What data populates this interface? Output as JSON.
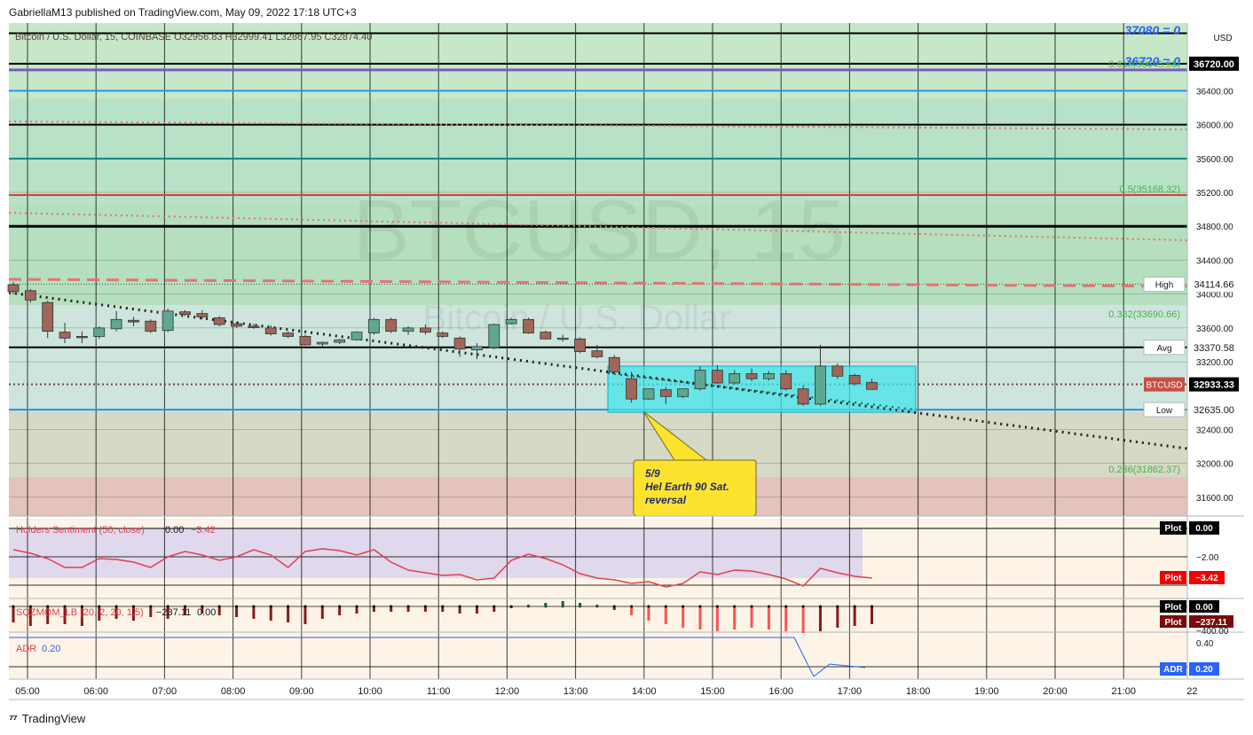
{
  "header": {
    "publisher": "GabriellaM13 published on TradingView.com, May 09, 2022 17:18 UTC+3"
  },
  "footer": {
    "brand": "TradingView",
    "logo_icon": "tradingview-logo-icon"
  },
  "main_chart": {
    "legend": "Bitcoin / U.S. Dollar, 15, COINBASE  O32956.83  H32999.41  L32867.95  C32874.40",
    "watermark_symbol": "BTCUSD, 15",
    "watermark_name": "Bitcoin / U.S. Dollar",
    "currency": "USD",
    "price_scale": [
      "36400.00",
      "36000.00",
      "35600.00",
      "35200.00",
      "34800.00",
      "34400.00",
      "34000.00",
      "33600.00",
      "33200.00",
      "32400.00",
      "32000.00",
      "31600.00"
    ],
    "fib_levels": [
      {
        "label": "0.618(36645.98)",
        "price": 36645.98
      },
      {
        "label": "0.5(35168.32)",
        "price": 35168.32
      },
      {
        "label": "0.382(33690.66)",
        "price": 33690.66
      },
      {
        "label": "0.236(31862.37)",
        "price": 31862.37
      }
    ],
    "blue_annotations": [
      "37080 = 0",
      "36720 = 0"
    ],
    "price_tags": [
      {
        "name": "",
        "value": "36720.00",
        "color": "#000000",
        "price": 36720
      },
      {
        "name": "High",
        "value": "34114.66",
        "color": "#ffffff",
        "price": 34114.66
      },
      {
        "name": "Avg",
        "value": "33370.58",
        "color": "#ffffff",
        "price": 33370.58
      },
      {
        "name": "BTCUSD",
        "value": "32933.33",
        "color": "#000000",
        "price": 32933.33
      },
      {
        "name": "Low",
        "value": "32635.00",
        "color": "#ffffff",
        "price": 32635
      }
    ],
    "callout": {
      "line1": "5/9",
      "line2": "Hel Earth 90 Sat.",
      "line3": "reversal"
    }
  },
  "time_axis": [
    "05:00",
    "06:00",
    "07:00",
    "08:00",
    "09:00",
    "10:00",
    "11:00",
    "12:00",
    "13:00",
    "14:00",
    "15:00",
    "16:00",
    "17:00",
    "18:00",
    "19:00",
    "20:00",
    "21:00",
    "22"
  ],
  "indicators": {
    "holders": {
      "label": "Holders Sentiment (50, close)",
      "v1": "0.00",
      "v2": "−3.42",
      "scale": "−2.00",
      "plot_label": "Plot",
      "plot_top": "0.00",
      "plot_bottom": "−3.42"
    },
    "sqz": {
      "label": "SQZMOM_LB (20, 2, 20, 1.5)",
      "v1": "−237.11",
      "v2": "0.00",
      "scale": "−400.00",
      "plot_label": "Plot",
      "plot_top": "0.00",
      "plot_bottom": "−237.11"
    },
    "adr": {
      "label": "ADR",
      "v1": "0.20",
      "scale": "0.40",
      "tag": "ADR",
      "tag_value": "0.20"
    }
  },
  "chart_data": {
    "type": "candlestick",
    "title": "Bitcoin / U.S. Dollar, 15, COINBASE",
    "timeframe": "15",
    "ylim": [
      31400,
      37200
    ],
    "x": [
      "04:45",
      "05:00",
      "05:15",
      "05:30",
      "05:45",
      "06:00",
      "06:15",
      "06:30",
      "06:45",
      "07:00",
      "07:15",
      "07:30",
      "07:45",
      "08:00",
      "08:15",
      "08:30",
      "08:45",
      "09:00",
      "09:15",
      "09:30",
      "09:45",
      "10:00",
      "10:15",
      "10:30",
      "10:45",
      "11:00",
      "11:15",
      "11:30",
      "11:45",
      "12:00",
      "12:15",
      "12:30",
      "12:45",
      "13:00",
      "13:15",
      "13:30",
      "13:45",
      "14:00",
      "14:15",
      "14:30",
      "14:45",
      "15:00",
      "15:15",
      "15:30",
      "15:45",
      "16:00",
      "16:15",
      "16:30",
      "16:45",
      "17:00",
      "17:15"
    ],
    "candles": [
      {
        "o": 34110,
        "h": 34140,
        "c": 34030,
        "l": 34000
      },
      {
        "o": 34040,
        "h": 34060,
        "c": 33930,
        "l": 33900
      },
      {
        "o": 33900,
        "h": 33920,
        "c": 33560,
        "l": 33480
      },
      {
        "o": 33550,
        "h": 33660,
        "c": 33480,
        "l": 33420
      },
      {
        "o": 33500,
        "h": 33560,
        "c": 33490,
        "l": 33420
      },
      {
        "o": 33500,
        "h": 33620,
        "c": 33600,
        "l": 33470
      },
      {
        "o": 33590,
        "h": 33800,
        "c": 33700,
        "l": 33560
      },
      {
        "o": 33690,
        "h": 33730,
        "c": 33670,
        "l": 33620
      },
      {
        "o": 33680,
        "h": 33700,
        "c": 33560,
        "l": 33540
      },
      {
        "o": 33570,
        "h": 33830,
        "c": 33800,
        "l": 33550
      },
      {
        "o": 33790,
        "h": 33810,
        "c": 33760,
        "l": 33740
      },
      {
        "o": 33770,
        "h": 33810,
        "c": 33730,
        "l": 33700
      },
      {
        "o": 33720,
        "h": 33740,
        "c": 33640,
        "l": 33620
      },
      {
        "o": 33650,
        "h": 33670,
        "c": 33620,
        "l": 33600
      },
      {
        "o": 33620,
        "h": 33650,
        "c": 33610,
        "l": 33590
      },
      {
        "o": 33600,
        "h": 33630,
        "c": 33530,
        "l": 33510
      },
      {
        "o": 33540,
        "h": 33560,
        "c": 33500,
        "l": 33480
      },
      {
        "o": 33500,
        "h": 33520,
        "c": 33400,
        "l": 33390
      },
      {
        "o": 33410,
        "h": 33440,
        "c": 33430,
        "l": 33380
      },
      {
        "o": 33430,
        "h": 33470,
        "c": 33460,
        "l": 33410
      },
      {
        "o": 33460,
        "h": 33560,
        "c": 33550,
        "l": 33450
      },
      {
        "o": 33540,
        "h": 33720,
        "c": 33700,
        "l": 33520
      },
      {
        "o": 33700,
        "h": 33720,
        "c": 33560,
        "l": 33540
      },
      {
        "o": 33560,
        "h": 33620,
        "c": 33600,
        "l": 33520
      },
      {
        "o": 33600,
        "h": 33640,
        "c": 33550,
        "l": 33520
      },
      {
        "o": 33540,
        "h": 33560,
        "c": 33500,
        "l": 33480
      },
      {
        "o": 33480,
        "h": 33500,
        "c": 33350,
        "l": 33260
      },
      {
        "o": 33340,
        "h": 33420,
        "c": 33380,
        "l": 33230
      },
      {
        "o": 33370,
        "h": 33650,
        "c": 33640,
        "l": 33350
      },
      {
        "o": 33650,
        "h": 33720,
        "c": 33700,
        "l": 33640
      },
      {
        "o": 33700,
        "h": 33720,
        "c": 33540,
        "l": 33530
      },
      {
        "o": 33550,
        "h": 33570,
        "c": 33470,
        "l": 33460
      },
      {
        "o": 33470,
        "h": 33520,
        "c": 33480,
        "l": 33440
      },
      {
        "o": 33470,
        "h": 33490,
        "c": 33320,
        "l": 33300
      },
      {
        "o": 33330,
        "h": 33400,
        "c": 33260,
        "l": 33240
      },
      {
        "o": 33250,
        "h": 33280,
        "c": 33080,
        "l": 33060
      },
      {
        "o": 33000,
        "h": 33080,
        "c": 32760,
        "l": 32720
      },
      {
        "o": 32760,
        "h": 32880,
        "c": 32880,
        "l": 32750
      },
      {
        "o": 32870,
        "h": 32900,
        "c": 32790,
        "l": 32700
      },
      {
        "o": 32790,
        "h": 32880,
        "c": 32880,
        "l": 32770
      },
      {
        "o": 32880,
        "h": 33150,
        "c": 33100,
        "l": 32860
      },
      {
        "o": 33100,
        "h": 33160,
        "c": 32950,
        "l": 32940
      },
      {
        "o": 32950,
        "h": 33100,
        "c": 33060,
        "l": 32930
      },
      {
        "o": 33060,
        "h": 33120,
        "c": 33000,
        "l": 32970
      },
      {
        "o": 33000,
        "h": 33090,
        "c": 33060,
        "l": 32980
      },
      {
        "o": 33060,
        "h": 33100,
        "c": 32880,
        "l": 32860
      },
      {
        "o": 32880,
        "h": 32920,
        "c": 32700,
        "l": 32680
      },
      {
        "o": 32700,
        "h": 33400,
        "c": 33150,
        "l": 32680
      },
      {
        "o": 33150,
        "h": 33180,
        "c": 33030,
        "l": 33000
      },
      {
        "o": 33040,
        "h": 33060,
        "c": 32940,
        "l": 32920
      },
      {
        "o": 32956.83,
        "h": 32999.41,
        "c": 32874.4,
        "l": 32867.95
      }
    ],
    "horizontal_levels": [
      37080,
      36720,
      36645.98,
      36400,
      36000,
      35600,
      35168.32,
      34800,
      34114.66,
      33370.58,
      32933.33,
      32635
    ],
    "fibonacci": [
      {
        "ratio": "0.618",
        "price": 36645.98
      },
      {
        "ratio": "0.5",
        "price": 35168.32
      },
      {
        "ratio": "0.382",
        "price": 33690.66
      },
      {
        "ratio": "0.236",
        "price": 31862.37
      }
    ],
    "annotation": "5/9 Hel Earth 90 Sat. reversal"
  }
}
